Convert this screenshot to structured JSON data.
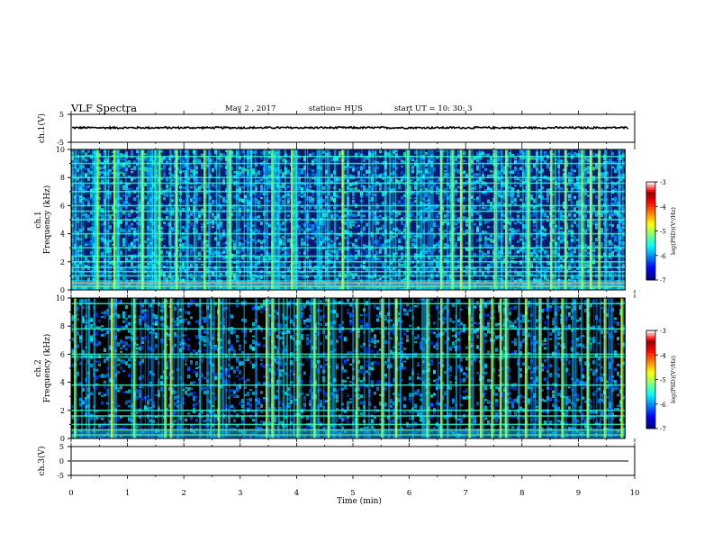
{
  "header": {
    "title": "VLF Spectra",
    "date": "May 2  , 2017",
    "station": "station= HUS",
    "start_time": "start  UT  =    10: 30: 3"
  },
  "chart_data": [
    {
      "type": "line",
      "name": "ch1-waveform",
      "ylabel": "ch.1(V)",
      "ylim": [
        -5,
        5
      ],
      "yticks": [
        "5",
        "-5"
      ],
      "xlim": [
        0,
        10
      ],
      "series": [
        {
          "level": 0.2,
          "noise_amplitude": 0.25,
          "color": "#000000"
        }
      ]
    },
    {
      "type": "heatmap",
      "name": "ch1-spectrogram",
      "ylabel": "ch.1\nFrequency (kHz)",
      "ylim": [
        0,
        10
      ],
      "yticks": [
        "0",
        "2",
        "4",
        "6",
        "8",
        "10"
      ],
      "xlim": [
        0,
        9.83
      ],
      "colorbar": {
        "label": "log(PSD)(V²/Hz)",
        "ticks": [
          "-3",
          "-4",
          "-5",
          "-6",
          "-7"
        ],
        "range": [
          -7,
          -3
        ]
      },
      "colors": {
        "background": "#0a1a6e"
      },
      "horizontal_lines_khz": [
        0.25,
        0.5,
        1.0,
        1.3,
        1.6,
        2.0,
        2.4,
        3.0,
        4.0,
        5.0,
        5.6,
        6.0,
        7.0,
        7.6,
        8.0,
        9.0,
        9.5
      ],
      "strong_bursts_min": [
        0.45,
        0.75,
        1.25,
        1.55,
        1.85,
        2.35,
        2.8,
        3.55,
        3.9,
        4.8,
        5.95,
        6.55,
        6.75,
        6.9,
        7.05,
        7.5,
        7.7,
        8.1,
        8.5,
        8.75,
        9.05,
        9.2,
        9.35
      ]
    },
    {
      "type": "heatmap",
      "name": "ch2-spectrogram",
      "ylabel": "ch.2\nFrequency (kHz)",
      "ylim": [
        0,
        10
      ],
      "yticks": [
        "0",
        "2",
        "4",
        "6",
        "8",
        "10"
      ],
      "xlim": [
        0,
        9.83
      ],
      "colorbar": {
        "label": "log(PSD)(V²/Hz)",
        "ticks": [
          "-3",
          "-4",
          "-5",
          "-6",
          "-7"
        ],
        "range": [
          -7,
          -3
        ]
      },
      "colors": {
        "background": "#000000"
      },
      "horizontal_lines_khz": [
        0.25,
        0.6,
        1.0,
        1.6,
        2.0,
        3.8,
        5.8,
        6.0,
        7.8,
        9.6
      ],
      "strong_bursts_min": [
        0.05,
        0.7,
        1.1,
        1.65,
        1.75,
        2.6,
        3.45,
        3.55,
        4.0,
        4.3,
        4.55,
        5.05,
        5.5,
        5.75,
        6.3,
        6.55,
        7.05,
        7.25,
        7.45,
        7.6,
        7.7,
        8.05,
        8.3,
        8.7,
        9.15,
        9.45,
        9.75
      ]
    },
    {
      "type": "line",
      "name": "ch3-waveform",
      "ylabel": "ch.3(V)",
      "ylim": [
        -5,
        5
      ],
      "yticks": [
        "5",
        "0",
        "-5"
      ],
      "xlim": [
        0,
        10
      ],
      "xlabel": "Time  (min)",
      "xticks": [
        "0",
        "1",
        "2",
        "3",
        "4",
        "5",
        "6",
        "7",
        "8",
        "9",
        "10"
      ],
      "series": [
        {
          "level": 0.0,
          "noise_amplitude": 0.0,
          "color": "#000000"
        }
      ]
    }
  ]
}
